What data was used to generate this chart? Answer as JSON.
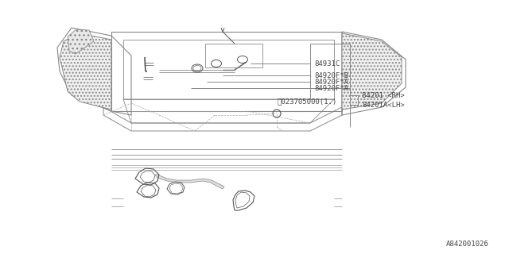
{
  "bg_color": "#ffffff",
  "line_color": "#888888",
  "dark_line": "#555555",
  "text_color": "#444444",
  "label_texts": {
    "84931C": "84931C",
    "84920F_B": "84920F*B",
    "84920F_A_top": "84920F*A",
    "84920F_A_mid": "84920F*A",
    "N_label": "Ⓝ023705000(1.)",
    "84201_RH": "84201 <RH>",
    "84201A_LH": "84201A<LH>",
    "diagram_code": "A842001026"
  },
  "fontsize": 6.5
}
